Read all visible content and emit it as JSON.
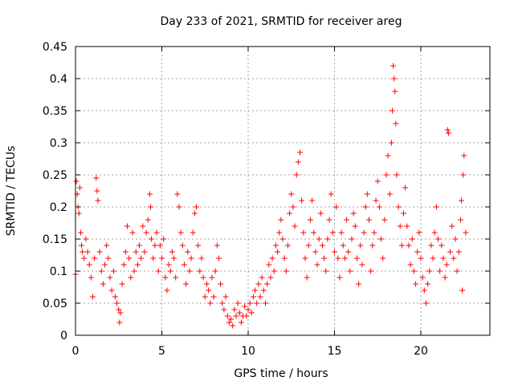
{
  "chart_data": {
    "type": "scatter",
    "title": "Day 233 of 2021, SRMTID for receiver areg",
    "xlabel": "GPS time / hours",
    "ylabel": "SRMTID / TECUs",
    "xlim": [
      0,
      24
    ],
    "ylim": [
      0,
      0.45
    ],
    "xticks": [
      0,
      5,
      10,
      15,
      20
    ],
    "xtick_labels": [
      "0",
      "5",
      "10",
      "15",
      "20"
    ],
    "yticks": [
      0,
      0.05,
      0.1,
      0.15,
      0.2,
      0.25,
      0.3,
      0.35,
      0.4,
      0.45
    ],
    "ytick_labels": [
      "0",
      "0.05",
      "0.1",
      "0.15",
      "0.2",
      "0.25",
      "0.3",
      "0.35",
      "0.4",
      "0.45"
    ],
    "grid": true,
    "marker": "+",
    "series": [
      {
        "name": "SRMTID",
        "color": "#ff0000",
        "points": [
          [
            0.0,
            0.095
          ],
          [
            0.05,
            0.24
          ],
          [
            0.1,
            0.22
          ],
          [
            0.15,
            0.2
          ],
          [
            0.2,
            0.19
          ],
          [
            0.25,
            0.23
          ],
          [
            0.3,
            0.16
          ],
          [
            0.35,
            0.14
          ],
          [
            0.4,
            0.13
          ],
          [
            0.5,
            0.12
          ],
          [
            0.6,
            0.15
          ],
          [
            0.7,
            0.13
          ],
          [
            0.8,
            0.11
          ],
          [
            0.9,
            0.09
          ],
          [
            1.0,
            0.06
          ],
          [
            1.1,
            0.12
          ],
          [
            1.2,
            0.245
          ],
          [
            1.25,
            0.225
          ],
          [
            1.3,
            0.21
          ],
          [
            1.4,
            0.13
          ],
          [
            1.5,
            0.1
          ],
          [
            1.6,
            0.08
          ],
          [
            1.7,
            0.11
          ],
          [
            1.8,
            0.14
          ],
          [
            1.9,
            0.12
          ],
          [
            2.0,
            0.09
          ],
          [
            2.1,
            0.07
          ],
          [
            2.2,
            0.1
          ],
          [
            2.3,
            0.06
          ],
          [
            2.4,
            0.05
          ],
          [
            2.5,
            0.04
          ],
          [
            2.55,
            0.02
          ],
          [
            2.6,
            0.035
          ],
          [
            2.7,
            0.08
          ],
          [
            2.8,
            0.11
          ],
          [
            2.9,
            0.13
          ],
          [
            3.0,
            0.17
          ],
          [
            3.1,
            0.12
          ],
          [
            3.2,
            0.09
          ],
          [
            3.3,
            0.16
          ],
          [
            3.4,
            0.1
          ],
          [
            3.5,
            0.13
          ],
          [
            3.6,
            0.11
          ],
          [
            3.7,
            0.14
          ],
          [
            3.8,
            0.12
          ],
          [
            3.9,
            0.17
          ],
          [
            4.0,
            0.13
          ],
          [
            4.1,
            0.16
          ],
          [
            4.2,
            0.18
          ],
          [
            4.3,
            0.22
          ],
          [
            4.35,
            0.2
          ],
          [
            4.4,
            0.15
          ],
          [
            4.5,
            0.12
          ],
          [
            4.6,
            0.14
          ],
          [
            4.7,
            0.16
          ],
          [
            4.8,
            0.1
          ],
          [
            4.9,
            0.14
          ],
          [
            5.0,
            0.12
          ],
          [
            5.1,
            0.15
          ],
          [
            5.2,
            0.09
          ],
          [
            5.3,
            0.07
          ],
          [
            5.4,
            0.11
          ],
          [
            5.5,
            0.1
          ],
          [
            5.6,
            0.13
          ],
          [
            5.7,
            0.12
          ],
          [
            5.8,
            0.09
          ],
          [
            5.9,
            0.22
          ],
          [
            6.0,
            0.2
          ],
          [
            6.1,
            0.16
          ],
          [
            6.2,
            0.14
          ],
          [
            6.3,
            0.11
          ],
          [
            6.4,
            0.08
          ],
          [
            6.5,
            0.13
          ],
          [
            6.6,
            0.1
          ],
          [
            6.7,
            0.12
          ],
          [
            6.8,
            0.16
          ],
          [
            6.9,
            0.19
          ],
          [
            7.0,
            0.2
          ],
          [
            7.1,
            0.14
          ],
          [
            7.2,
            0.1
          ],
          [
            7.3,
            0.12
          ],
          [
            7.4,
            0.09
          ],
          [
            7.5,
            0.06
          ],
          [
            7.6,
            0.08
          ],
          [
            7.7,
            0.07
          ],
          [
            7.8,
            0.05
          ],
          [
            7.9,
            0.09
          ],
          [
            8.0,
            0.06
          ],
          [
            8.1,
            0.1
          ],
          [
            8.2,
            0.14
          ],
          [
            8.3,
            0.12
          ],
          [
            8.4,
            0.08
          ],
          [
            8.5,
            0.05
          ],
          [
            8.6,
            0.04
          ],
          [
            8.7,
            0.06
          ],
          [
            8.8,
            0.03
          ],
          [
            8.9,
            0.02
          ],
          [
            9.0,
            0.025
          ],
          [
            9.1,
            0.015
          ],
          [
            9.2,
            0.04
          ],
          [
            9.3,
            0.03
          ],
          [
            9.4,
            0.05
          ],
          [
            9.5,
            0.035
          ],
          [
            9.6,
            0.02
          ],
          [
            9.7,
            0.03
          ],
          [
            9.8,
            0.045
          ],
          [
            9.9,
            0.03
          ],
          [
            10.0,
            0.04
          ],
          [
            10.1,
            0.05
          ],
          [
            10.2,
            0.035
          ],
          [
            10.3,
            0.06
          ],
          [
            10.4,
            0.07
          ],
          [
            10.5,
            0.05
          ],
          [
            10.6,
            0.08
          ],
          [
            10.7,
            0.06
          ],
          [
            10.8,
            0.09
          ],
          [
            10.9,
            0.07
          ],
          [
            11.0,
            0.05
          ],
          [
            11.1,
            0.08
          ],
          [
            11.2,
            0.11
          ],
          [
            11.3,
            0.09
          ],
          [
            11.4,
            0.12
          ],
          [
            11.5,
            0.1
          ],
          [
            11.6,
            0.14
          ],
          [
            11.7,
            0.13
          ],
          [
            11.8,
            0.16
          ],
          [
            11.9,
            0.18
          ],
          [
            12.0,
            0.15
          ],
          [
            12.1,
            0.12
          ],
          [
            12.2,
            0.1
          ],
          [
            12.3,
            0.14
          ],
          [
            12.4,
            0.19
          ],
          [
            12.5,
            0.22
          ],
          [
            12.6,
            0.2
          ],
          [
            12.7,
            0.17
          ],
          [
            12.8,
            0.25
          ],
          [
            12.9,
            0.27
          ],
          [
            13.0,
            0.285
          ],
          [
            13.1,
            0.21
          ],
          [
            13.2,
            0.16
          ],
          [
            13.3,
            0.12
          ],
          [
            13.4,
            0.09
          ],
          [
            13.5,
            0.14
          ],
          [
            13.6,
            0.18
          ],
          [
            13.7,
            0.21
          ],
          [
            13.8,
            0.16
          ],
          [
            13.9,
            0.13
          ],
          [
            14.0,
            0.11
          ],
          [
            14.1,
            0.15
          ],
          [
            14.2,
            0.19
          ],
          [
            14.3,
            0.14
          ],
          [
            14.4,
            0.12
          ],
          [
            14.5,
            0.1
          ],
          [
            14.6,
            0.15
          ],
          [
            14.7,
            0.18
          ],
          [
            14.8,
            0.22
          ],
          [
            14.9,
            0.16
          ],
          [
            15.0,
            0.13
          ],
          [
            15.1,
            0.2
          ],
          [
            15.2,
            0.12
          ],
          [
            15.3,
            0.09
          ],
          [
            15.4,
            0.16
          ],
          [
            15.5,
            0.14
          ],
          [
            15.6,
            0.12
          ],
          [
            15.7,
            0.18
          ],
          [
            15.8,
            0.13
          ],
          [
            15.9,
            0.1
          ],
          [
            16.0,
            0.15
          ],
          [
            16.1,
            0.19
          ],
          [
            16.2,
            0.17
          ],
          [
            16.3,
            0.12
          ],
          [
            16.4,
            0.08
          ],
          [
            16.5,
            0.14
          ],
          [
            16.6,
            0.11
          ],
          [
            16.7,
            0.16
          ],
          [
            16.8,
            0.2
          ],
          [
            16.9,
            0.22
          ],
          [
            17.0,
            0.18
          ],
          [
            17.1,
            0.1
          ],
          [
            17.2,
            0.14
          ],
          [
            17.3,
            0.16
          ],
          [
            17.4,
            0.21
          ],
          [
            17.5,
            0.24
          ],
          [
            17.6,
            0.2
          ],
          [
            17.7,
            0.15
          ],
          [
            17.8,
            0.12
          ],
          [
            17.9,
            0.18
          ],
          [
            18.0,
            0.25
          ],
          [
            18.1,
            0.28
          ],
          [
            18.2,
            0.22
          ],
          [
            18.3,
            0.3
          ],
          [
            18.35,
            0.35
          ],
          [
            18.4,
            0.42
          ],
          [
            18.45,
            0.4
          ],
          [
            18.5,
            0.38
          ],
          [
            18.55,
            0.33
          ],
          [
            18.6,
            0.25
          ],
          [
            18.7,
            0.2
          ],
          [
            18.8,
            0.17
          ],
          [
            18.9,
            0.14
          ],
          [
            19.0,
            0.19
          ],
          [
            19.1,
            0.23
          ],
          [
            19.2,
            0.17
          ],
          [
            19.3,
            0.14
          ],
          [
            19.4,
            0.11
          ],
          [
            19.5,
            0.15
          ],
          [
            19.6,
            0.1
          ],
          [
            19.7,
            0.08
          ],
          [
            19.8,
            0.13
          ],
          [
            19.9,
            0.16
          ],
          [
            20.0,
            0.12
          ],
          [
            20.1,
            0.09
          ],
          [
            20.2,
            0.07
          ],
          [
            20.3,
            0.05
          ],
          [
            20.4,
            0.08
          ],
          [
            20.5,
            0.1
          ],
          [
            20.6,
            0.14
          ],
          [
            20.7,
            0.12
          ],
          [
            20.8,
            0.16
          ],
          [
            20.9,
            0.2
          ],
          [
            21.0,
            0.15
          ],
          [
            21.1,
            0.1
          ],
          [
            21.2,
            0.14
          ],
          [
            21.3,
            0.12
          ],
          [
            21.4,
            0.09
          ],
          [
            21.5,
            0.11
          ],
          [
            21.55,
            0.32
          ],
          [
            21.6,
            0.315
          ],
          [
            21.7,
            0.13
          ],
          [
            21.8,
            0.17
          ],
          [
            21.9,
            0.12
          ],
          [
            22.0,
            0.15
          ],
          [
            22.1,
            0.1
          ],
          [
            22.2,
            0.13
          ],
          [
            22.3,
            0.18
          ],
          [
            22.35,
            0.21
          ],
          [
            22.4,
            0.07
          ],
          [
            22.45,
            0.25
          ],
          [
            22.5,
            0.28
          ],
          [
            22.6,
            0.16
          ]
        ]
      }
    ]
  }
}
